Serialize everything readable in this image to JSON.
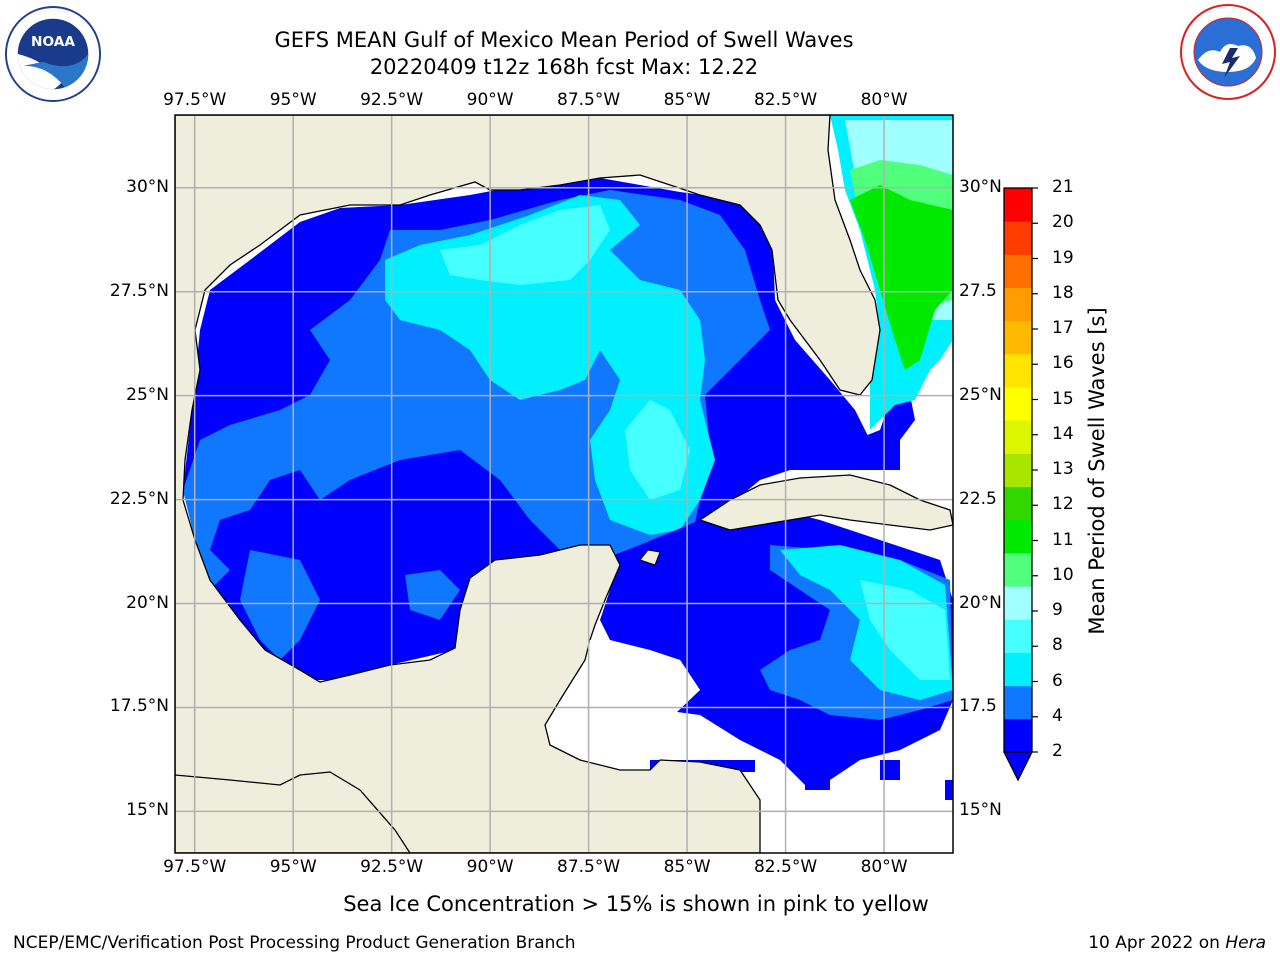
{
  "title": {
    "line1": "GEFS MEAN Gulf of Mexico Mean Period of Swell Waves",
    "line2": "20220409 t12z 168h fcst   Max: 12.22"
  },
  "logos": {
    "noaa": {
      "text": "NOAA",
      "ring_text": "NATIONAL OCEANIC AND ATMOSPHERIC ADMINISTRATION · U.S. DEPARTMENT OF COMMERCE"
    },
    "nws": {
      "ring_text": "NATIONAL WEATHER SERVICE"
    }
  },
  "map": {
    "lon_range": [
      -98.0,
      -78.25
    ],
    "lat_range": [
      14.0,
      31.75
    ],
    "lon_ticks": [
      "97.5°W",
      "95°W",
      "92.5°W",
      "90°W",
      "87.5°W",
      "85°W",
      "82.5°W",
      "80°W"
    ],
    "lat_ticks_left": [
      "30°N",
      "27.5°N",
      "25°N",
      "22.5°N",
      "20°N",
      "17.5°N",
      "15°N"
    ],
    "lat_ticks_right": [
      "30°N",
      "27.5",
      "25°N",
      "22.5",
      "20°N",
      "17.5",
      "15°N"
    ],
    "colors": {
      "land": "#efeedd",
      "coast": "#000000",
      "grid": "#b0b0b0"
    }
  },
  "colorbar": {
    "label": "Mean Period of Swell Waves [s]",
    "ticks": [
      "21",
      "20",
      "19",
      "18",
      "17",
      "16",
      "15",
      "14",
      "13",
      "12",
      "11",
      "10",
      "9",
      "8",
      "6",
      "4",
      "2"
    ],
    "colors": [
      "#0000ff",
      "#0f78ff",
      "#00f0ff",
      "#46ffff",
      "#a0ffff",
      "#50ff7c",
      "#00ea00",
      "#32d700",
      "#a8e600",
      "#dcf500",
      "#ffff00",
      "#ffe400",
      "#ffb900",
      "#ff9d00",
      "#ff6e00",
      "#ff3c00",
      "#ff0000"
    ]
  },
  "ice_note": "Sea Ice Concentration > 15% is shown in pink to yellow",
  "footer": {
    "left": "NCEP/EMC/Verification Post Processing Product Generation Branch",
    "date": "10 Apr 2022 on",
    "machine": "Hera"
  }
}
